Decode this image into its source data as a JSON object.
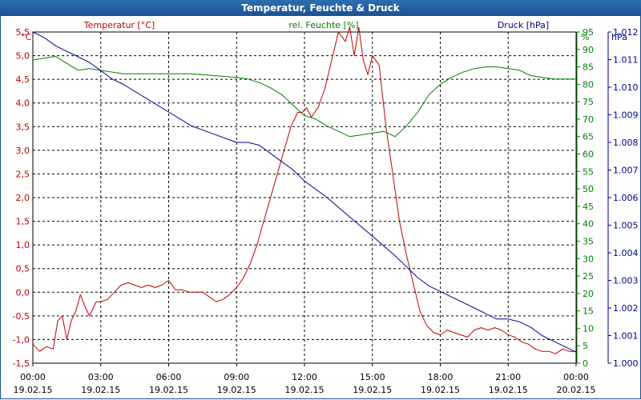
{
  "window": {
    "title": "Temperatur, Feuchte & Druck"
  },
  "colors": {
    "temperature": "#c00000",
    "humidity": "#008000",
    "pressure": "#00008b",
    "grid": "#000000"
  },
  "chart_data": {
    "type": "line",
    "title": "Temperatur, Feuchte & Druck",
    "x_labels": [
      {
        "time": "00:00",
        "date": "19.02.15"
      },
      {
        "time": "03:00",
        "date": "19.02.15"
      },
      {
        "time": "06:00",
        "date": "19.02.15"
      },
      {
        "time": "09:00",
        "date": "19.02.15"
      },
      {
        "time": "12:00",
        "date": "19.02.15"
      },
      {
        "time": "15:00",
        "date": "19.02.15"
      },
      {
        "time": "18:00",
        "date": "19.02.15"
      },
      {
        "time": "21:00",
        "date": "19.02.15"
      },
      {
        "time": "00:00",
        "date": "20.02.15"
      }
    ],
    "xlim": [
      0,
      24
    ],
    "axes": {
      "temperature": {
        "label": "Temperatur [°C]",
        "unit": "°C",
        "ylim": [
          -1.5,
          5.5
        ],
        "ticks": [
          "-1,5",
          "-1,0",
          "-0,5",
          "0,0",
          "0,5",
          "1,0",
          "1,5",
          "2,0",
          "2,5",
          "3,0",
          "3,5",
          "4,0",
          "4,5",
          "5,0",
          "5,5"
        ]
      },
      "humidity": {
        "label": "rel. Feuchte [%]",
        "unit": "%",
        "ylim": [
          0,
          95
        ],
        "ticks": [
          "0",
          "5",
          "10",
          "15",
          "20",
          "25",
          "30",
          "35",
          "40",
          "45",
          "50",
          "55",
          "60",
          "65",
          "70",
          "75",
          "80",
          "85",
          "90",
          "95"
        ]
      },
      "pressure": {
        "label": "Druck [hPa]",
        "unit": "hPa",
        "ylim": [
          1000.0,
          1012.0
        ],
        "ticks": [
          "1.000",
          "1.001",
          "1.002",
          "1.003",
          "1.004",
          "1.005",
          "1.006",
          "1.007",
          "1.008",
          "1.009",
          "1.010",
          "1.011",
          "1.012"
        ]
      }
    },
    "series": [
      {
        "name": "Temperatur [°C]",
        "axis": "temperature",
        "color": "#c00000",
        "x": [
          0,
          0.3,
          0.6,
          0.9,
          1.1,
          1.3,
          1.5,
          1.7,
          1.9,
          2.1,
          2.3,
          2.5,
          2.8,
          3,
          3.3,
          3.6,
          3.9,
          4.2,
          4.5,
          4.8,
          5.1,
          5.4,
          5.7,
          6,
          6.3,
          6.6,
          6.9,
          7.2,
          7.5,
          7.8,
          8.1,
          8.4,
          8.7,
          9,
          9.3,
          9.6,
          9.9,
          10.2,
          10.5,
          10.8,
          11.1,
          11.4,
          11.7,
          11.9,
          12.1,
          12.3,
          12.6,
          12.9,
          13.2,
          13.5,
          13.8,
          14,
          14.2,
          14.4,
          14.6,
          14.8,
          15,
          15.3,
          15.6,
          15.9,
          16.2,
          16.5,
          16.8,
          17.1,
          17.4,
          17.7,
          18,
          18.3,
          18.6,
          18.9,
          19.2,
          19.5,
          19.8,
          20.1,
          20.4,
          20.7,
          21,
          21.3,
          21.6,
          21.9,
          22.2,
          22.5,
          22.8,
          23.1,
          23.4,
          23.7,
          24
        ],
        "y": [
          -1.1,
          -1.25,
          -1.15,
          -1.2,
          -0.6,
          -0.5,
          -1.0,
          -0.6,
          -0.4,
          -0.05,
          -0.3,
          -0.5,
          -0.2,
          -0.2,
          -0.15,
          0.0,
          0.15,
          0.2,
          0.15,
          0.1,
          0.15,
          0.1,
          0.15,
          0.25,
          0.05,
          0.05,
          0.0,
          0.0,
          0.0,
          -0.1,
          -0.2,
          -0.15,
          -0.05,
          0.1,
          0.3,
          0.6,
          1.0,
          1.5,
          2.0,
          2.5,
          3.0,
          3.5,
          3.8,
          3.8,
          3.9,
          3.7,
          3.9,
          4.3,
          4.9,
          5.5,
          5.3,
          5.6,
          5.0,
          5.6,
          4.9,
          4.6,
          5.0,
          4.8,
          3.5,
          2.5,
          1.5,
          0.8,
          0.2,
          -0.4,
          -0.7,
          -0.85,
          -0.9,
          -0.8,
          -0.85,
          -0.9,
          -0.95,
          -0.8,
          -0.75,
          -0.8,
          -0.75,
          -0.8,
          -0.9,
          -0.95,
          -1.05,
          -1.1,
          -1.2,
          -1.25,
          -1.25,
          -1.3,
          -1.2,
          -1.25,
          -1.25
        ]
      },
      {
        "name": "rel. Feuchte [%]",
        "axis": "humidity",
        "color": "#008000",
        "x": [
          0,
          0.5,
          1,
          1.5,
          2,
          2.5,
          3,
          3.5,
          4,
          5,
          6,
          7,
          8,
          9,
          9.5,
          10,
          10.5,
          11,
          11.5,
          12,
          12.5,
          13,
          13.5,
          14,
          14.5,
          15,
          15.5,
          16,
          16.5,
          17,
          17.5,
          18,
          18.5,
          19,
          19.5,
          20,
          20.5,
          21,
          21.5,
          22,
          22.5,
          23,
          23.5,
          24
        ],
        "y": [
          87,
          87.5,
          88,
          86,
          84,
          84.5,
          84,
          83.5,
          83,
          83,
          83,
          83,
          82.5,
          82,
          81.5,
          80.5,
          79,
          77,
          74,
          71,
          70,
          68,
          66.5,
          65,
          65.5,
          66,
          66.5,
          65,
          68,
          72,
          77,
          80,
          82,
          83.5,
          84.5,
          85,
          85,
          84.5,
          84,
          82.5,
          82,
          81.5,
          81.5,
          81.5
        ]
      },
      {
        "name": "Druck [hPa]",
        "axis": "pressure",
        "color": "#00008b",
        "x": [
          0,
          0.5,
          1,
          1.5,
          2,
          2.5,
          3,
          3.5,
          4,
          5,
          6,
          7,
          8,
          9,
          9.5,
          10,
          10.5,
          11,
          11.5,
          12,
          13,
          14,
          15,
          16,
          16.5,
          17,
          17.5,
          18,
          18.5,
          19,
          19.5,
          20,
          20.5,
          21,
          21.5,
          22,
          22.5,
          23,
          23.5,
          24
        ],
        "y": [
          1012.0,
          1011.8,
          1011.5,
          1011.3,
          1011.1,
          1010.9,
          1010.6,
          1010.3,
          1010.1,
          1009.6,
          1009.1,
          1008.6,
          1008.3,
          1008.0,
          1008.0,
          1007.9,
          1007.6,
          1007.3,
          1007.0,
          1006.6,
          1006.0,
          1005.3,
          1004.6,
          1003.9,
          1003.5,
          1003.1,
          1002.8,
          1002.6,
          1002.4,
          1002.2,
          1002.0,
          1001.8,
          1001.6,
          1001.6,
          1001.5,
          1001.3,
          1001.0,
          1000.8,
          1000.6,
          1000.4
        ]
      }
    ]
  }
}
